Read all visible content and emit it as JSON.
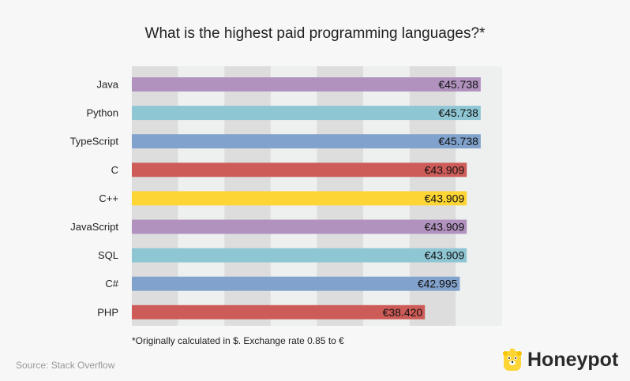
{
  "chart_data": {
    "type": "bar",
    "orientation": "horizontal",
    "title": "What is the highest paid programming languages?*",
    "categories": [
      "Java",
      "Python",
      "TypeScript",
      "C",
      "C++",
      "JavaScript",
      "SQL",
      "C#",
      "PHP"
    ],
    "values": [
      45738,
      45738,
      45738,
      43909,
      43909,
      43909,
      43909,
      42995,
      38420
    ],
    "labels": [
      "€45.738",
      "€45.738",
      "€45.738",
      "€43.909",
      "€43.909",
      "€43.909",
      "€43.909",
      "€42.995",
      "€38.420"
    ],
    "colors": [
      "#b192bf",
      "#8fc6d4",
      "#81a2cc",
      "#cd5c58",
      "#fdd535",
      "#b192bf",
      "#8fc6d4",
      "#81a2cc",
      "#cd5c58"
    ],
    "xlim": [
      0,
      48540
    ],
    "grid": "alternating vertical bands",
    "band_colors": [
      "#dddddd",
      "#eef0f0"
    ]
  },
  "footnote": "*Originally calculated in $. Exchange rate 0.85 to €",
  "source": "Source: Stack Overflow",
  "brand": {
    "name": "Honeypot",
    "color": "#fdd535"
  }
}
